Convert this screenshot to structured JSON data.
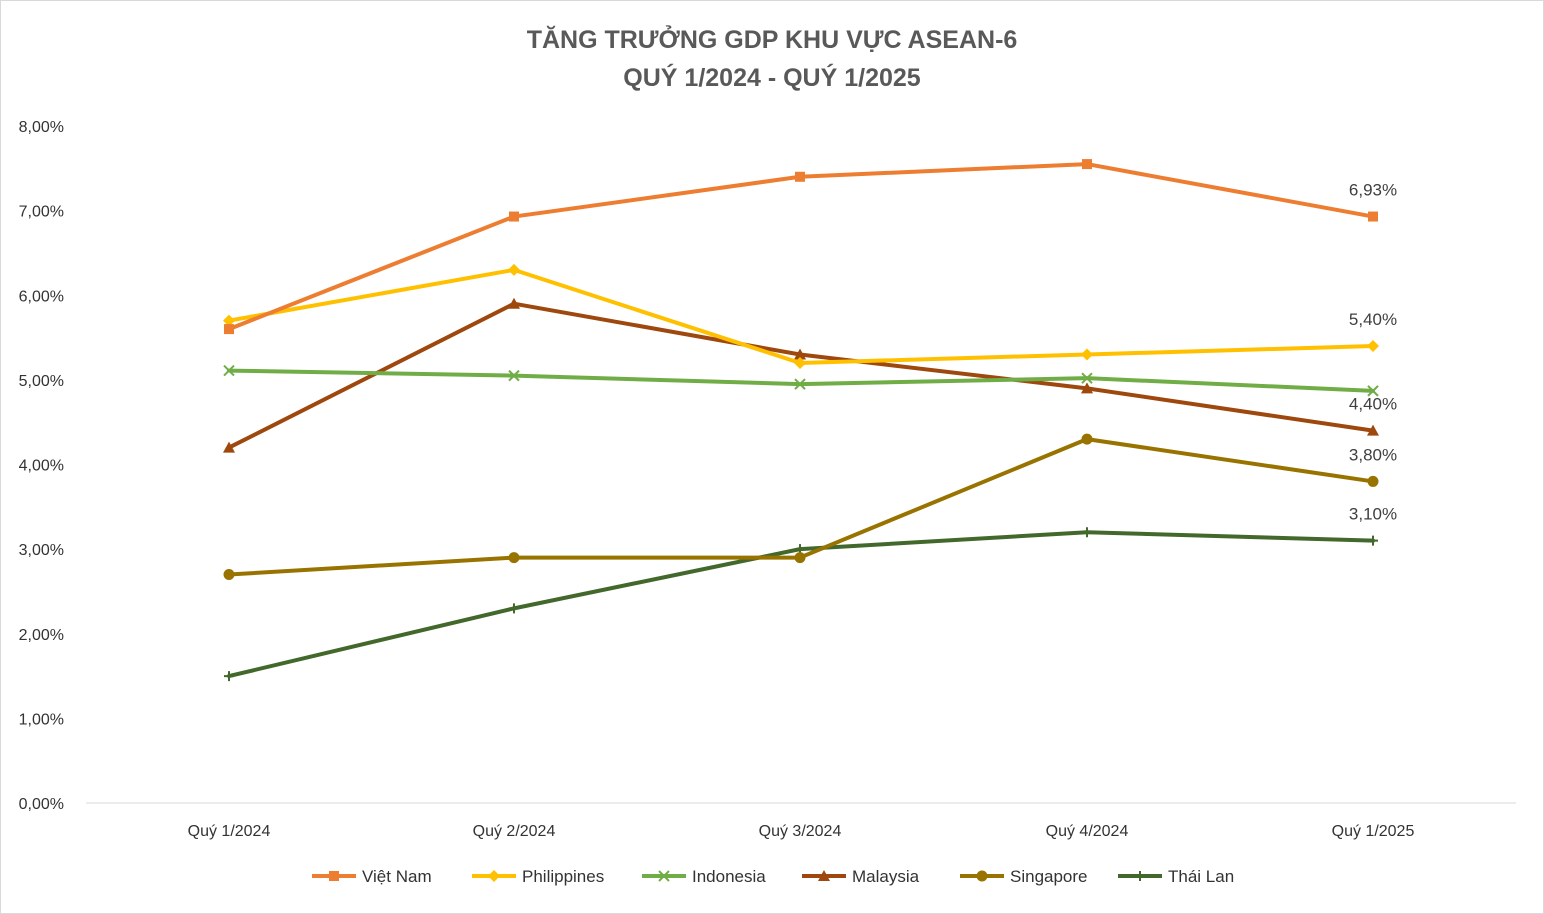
{
  "chart_data": {
    "type": "line",
    "title": "TĂNG TRƯỞNG GDP KHU VỰC ASEAN-6",
    "subtitle": "QUÝ 1/2024 - QUÝ 1/2025",
    "xlabel": "",
    "ylabel": "",
    "categories": [
      "Quý 1/2024",
      "Quý 2/2024",
      "Quý 3/2024",
      "Quý 4/2024",
      "Quý 1/2025"
    ],
    "ylim": [
      0,
      8
    ],
    "yticks": [
      "0,00%",
      "1,00%",
      "2,00%",
      "3,00%",
      "4,00%",
      "5,00%",
      "6,00%",
      "7,00%",
      "8,00%"
    ],
    "grid": false,
    "legend_position": "bottom",
    "series": [
      {
        "name": "Việt Nam",
        "values": [
          5.6,
          6.93,
          7.4,
          7.55,
          6.93
        ],
        "color": "#ED7D31",
        "marker": "square",
        "last_label": "6,93%"
      },
      {
        "name": "Philippines",
        "values": [
          5.7,
          6.3,
          5.2,
          5.3,
          5.4
        ],
        "color": "#FFC000",
        "marker": "diamond",
        "last_label": "5,40%"
      },
      {
        "name": "Indonesia",
        "values": [
          5.11,
          5.05,
          4.95,
          5.02,
          4.87
        ],
        "color": "#70AD47",
        "marker": "x",
        "last_label": ""
      },
      {
        "name": "Malaysia",
        "values": [
          4.2,
          5.9,
          5.3,
          4.9,
          4.4
        ],
        "color": "#9E480E",
        "marker": "triangle",
        "last_label": "4,40%"
      },
      {
        "name": "Singapore",
        "values": [
          2.7,
          2.9,
          2.9,
          4.3,
          3.8
        ],
        "color": "#997300",
        "marker": "circle",
        "last_label": "3,80%"
      },
      {
        "name": "Thái Lan",
        "values": [
          1.5,
          2.3,
          3.0,
          3.2,
          3.1
        ],
        "color": "#43682B",
        "marker": "plus",
        "last_label": "3,10%"
      }
    ]
  }
}
